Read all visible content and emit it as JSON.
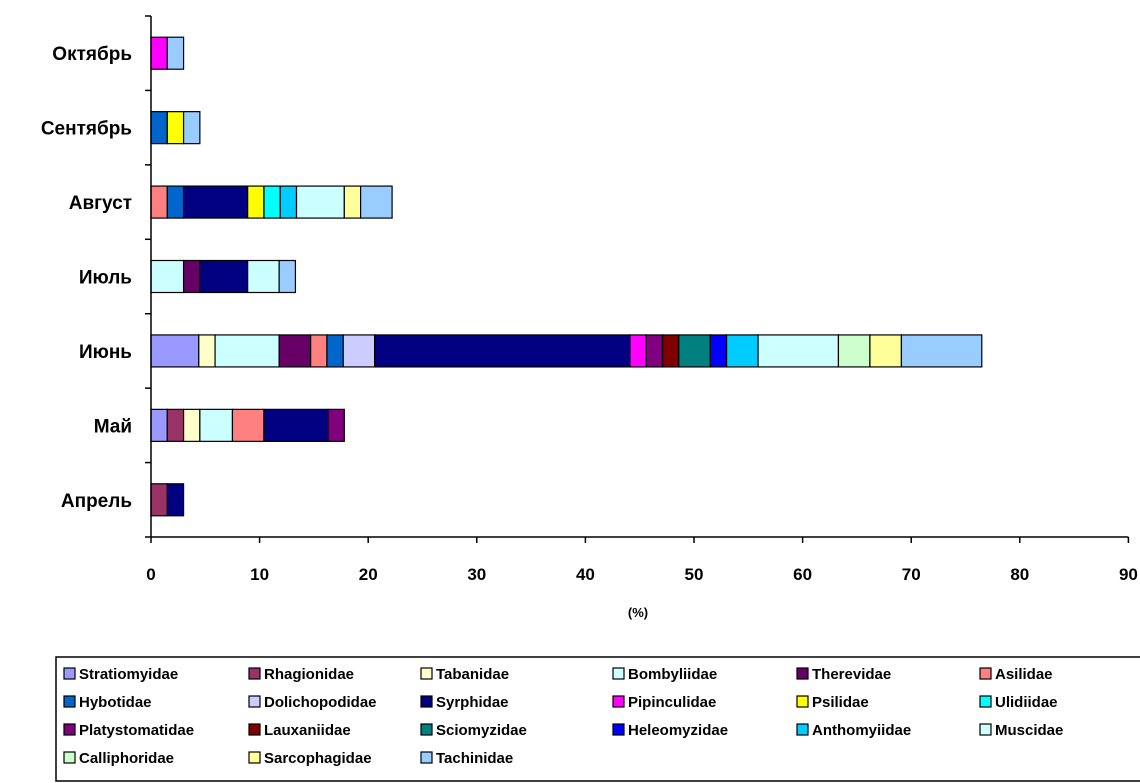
{
  "chart_data": {
    "type": "bar",
    "orientation": "horizontal",
    "stacked": true,
    "title": "",
    "xlabel": "(%)",
    "ylabel": "",
    "xlim": [
      0,
      90
    ],
    "x_ticks": [
      0,
      10,
      20,
      30,
      40,
      50,
      60,
      70,
      80,
      90
    ],
    "grid": false,
    "legend_position": "bottom",
    "categories": [
      "Октябрь",
      "Сентябрь",
      "Август",
      "Июль",
      "Июнь",
      "Май",
      "Апрель"
    ],
    "series": [
      {
        "name": "Stratiomyidae",
        "color": "#9999ff",
        "values": [
          0,
          0,
          0,
          0,
          4.4,
          1.5,
          0
        ]
      },
      {
        "name": "Rhagionidae",
        "color": "#993366",
        "values": [
          0,
          0,
          0,
          0,
          0,
          1.5,
          1.5
        ]
      },
      {
        "name": "Tabanidae",
        "color": "#ffffcc",
        "values": [
          0,
          0,
          0,
          0,
          1.5,
          1.5,
          0
        ]
      },
      {
        "name": "Bombyliidae",
        "color": "#ccffff",
        "values": [
          0,
          0,
          0,
          3.0,
          5.9,
          3.0,
          0
        ]
      },
      {
        "name": "Therevidae",
        "color": "#660066",
        "values": [
          0,
          0,
          0,
          1.5,
          2.9,
          0,
          0
        ]
      },
      {
        "name": "Asilidae",
        "color": "#ff8080",
        "values": [
          0,
          0,
          1.5,
          0,
          1.5,
          2.9,
          0
        ]
      },
      {
        "name": "Hybotidae",
        "color": "#0066cc",
        "values": [
          0,
          1.5,
          1.5,
          0,
          1.5,
          0,
          0
        ]
      },
      {
        "name": "Dolichopodidae",
        "color": "#ccccff",
        "values": [
          0,
          0,
          0,
          0,
          2.9,
          0,
          0
        ]
      },
      {
        "name": "Syrphidae",
        "color": "#000080",
        "values": [
          0,
          0,
          5.9,
          4.4,
          23.5,
          5.9,
          1.5
        ]
      },
      {
        "name": "Pipinculidae",
        "color": "#ff00ff",
        "values": [
          1.5,
          0,
          0,
          0,
          1.5,
          0,
          0
        ]
      },
      {
        "name": "Psilidae",
        "color": "#ffff00",
        "values": [
          0,
          1.5,
          1.5,
          0,
          0,
          0,
          0
        ]
      },
      {
        "name": "Ulidiidae",
        "color": "#00ffff",
        "values": [
          0,
          0,
          1.5,
          0,
          0,
          0,
          0
        ]
      },
      {
        "name": "Platystomatidae",
        "color": "#800080",
        "values": [
          0,
          0,
          0,
          0,
          1.5,
          1.5,
          0
        ]
      },
      {
        "name": "Lauxaniidae",
        "color": "#800000",
        "values": [
          0,
          0,
          0,
          0,
          1.5,
          0,
          0
        ]
      },
      {
        "name": "Sciomyzidae",
        "color": "#008080",
        "values": [
          0,
          0,
          0,
          0,
          2.9,
          0,
          0
        ]
      },
      {
        "name": "Heleomyzidae",
        "color": "#0000ff",
        "values": [
          0,
          0,
          0,
          0,
          1.5,
          0,
          0
        ]
      },
      {
        "name": "Anthomyiidae",
        "color": "#00ccff",
        "values": [
          0,
          0,
          1.5,
          0,
          2.9,
          0,
          0
        ]
      },
      {
        "name": "Muscidae",
        "color": "#ccffff",
        "values": [
          0,
          0,
          4.4,
          2.9,
          7.4,
          0,
          0
        ]
      },
      {
        "name": "Calliphoridae",
        "color": "#ccffcc",
        "values": [
          0,
          0,
          0,
          0,
          2.9,
          0,
          0
        ]
      },
      {
        "name": "Sarcophagidae",
        "color": "#ffff99",
        "values": [
          0,
          0,
          1.5,
          0,
          2.9,
          0,
          0
        ]
      },
      {
        "name": "Tachinidae",
        "color": "#99ccff",
        "values": [
          1.5,
          1.5,
          2.9,
          1.5,
          7.4,
          0,
          0
        ]
      }
    ]
  }
}
